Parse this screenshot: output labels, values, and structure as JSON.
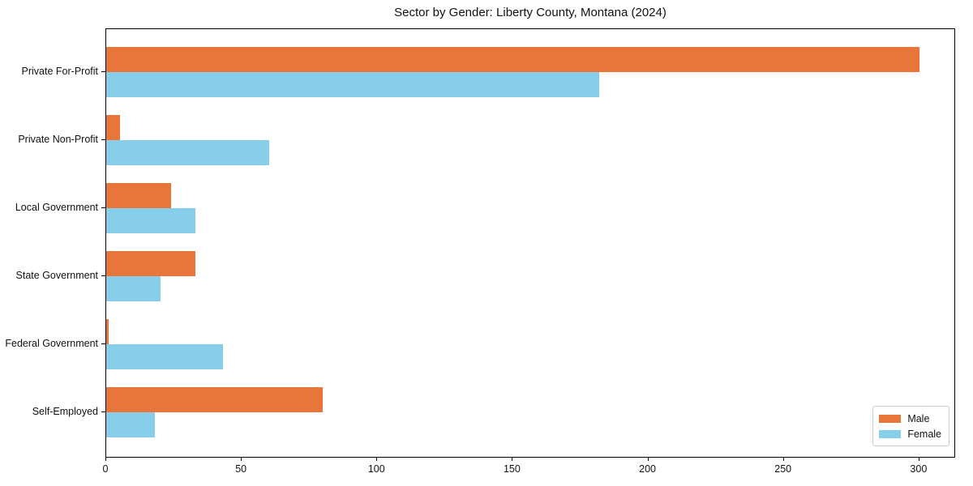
{
  "figure": {
    "background": "#ffffff",
    "text_color": "#111111",
    "spine_color": "#000000"
  },
  "chart_data": {
    "type": "bar",
    "orientation": "horizontal",
    "title": "Sector by Gender: Liberty County, Montana (2024)",
    "categories": [
      "Private For-Profit",
      "Private Non-Profit",
      "Local Government",
      "State Government",
      "Federal Government",
      "Self-Employed"
    ],
    "series": [
      {
        "name": "Male",
        "color": "#e8763b",
        "values": [
          300,
          5,
          24,
          33,
          1,
          80
        ]
      },
      {
        "name": "Female",
        "color": "#87ceeb",
        "values": [
          182,
          60,
          33,
          20,
          43,
          18
        ]
      }
    ],
    "xlabel": "",
    "ylabel": "",
    "xticks": [
      0,
      50,
      100,
      150,
      200,
      250,
      300
    ],
    "xlim": [
      0,
      313.5
    ],
    "grid": false,
    "legend_position": "lower right"
  }
}
